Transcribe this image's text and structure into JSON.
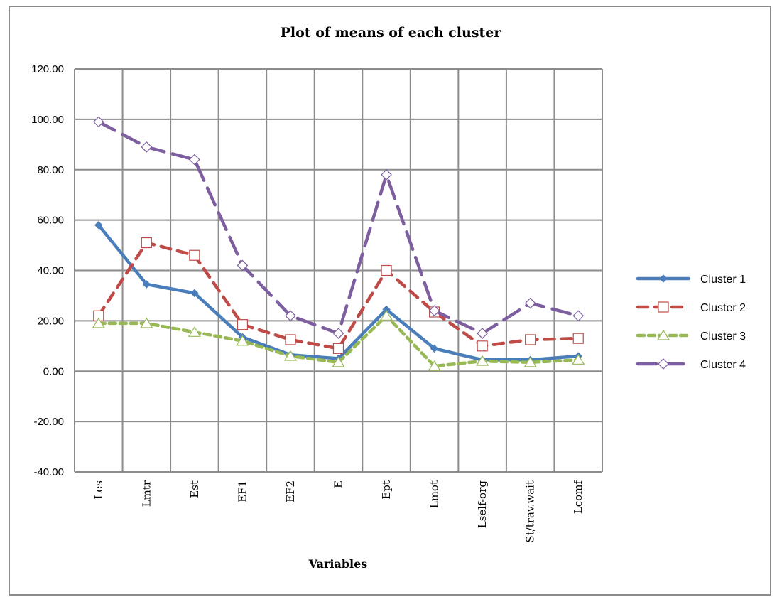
{
  "chart_data": {
    "type": "line",
    "title": "Plot of means of each cluster",
    "xlabel": "Variables",
    "ylabel": "",
    "ylim": [
      -40,
      120
    ],
    "yticks": [
      "120.00",
      "100.00",
      "80.00",
      "60.00",
      "40.00",
      "20.00",
      "0.00",
      "-20.00",
      "-40.00"
    ],
    "categories": [
      "Les",
      "Lmtr",
      "Est",
      "EF1",
      "EF2",
      "E",
      "Ept",
      "Lmot",
      "Lself-org",
      "St/trav.wait",
      "Lcomf"
    ],
    "grid": true,
    "legend_position": "right",
    "series": [
      {
        "name": "Cluster 1",
        "color": "#4a7ebb",
        "dash": "solid",
        "marker": "diamond-small",
        "values": [
          58,
          34.5,
          31,
          13.5,
          6.5,
          5,
          24.5,
          9,
          4.5,
          4.5,
          6
        ]
      },
      {
        "name": "Cluster 2",
        "color": "#be4b48",
        "dash": "dashed",
        "marker": "square",
        "values": [
          22,
          51,
          46,
          18.5,
          12.5,
          9,
          40,
          23.5,
          10,
          12.5,
          13
        ]
      },
      {
        "name": "Cluster 3",
        "color": "#98b954",
        "dash": "dotted",
        "marker": "triangle",
        "values": [
          19,
          19,
          15.5,
          12,
          6,
          3.5,
          22,
          2,
          4,
          3.5,
          4.5
        ]
      },
      {
        "name": "Cluster 4",
        "color": "#7d5fa0",
        "dash": "long-dash",
        "marker": "diamond",
        "values": [
          99,
          89,
          84,
          42,
          22,
          15,
          78,
          24,
          15,
          27,
          22
        ]
      }
    ]
  }
}
